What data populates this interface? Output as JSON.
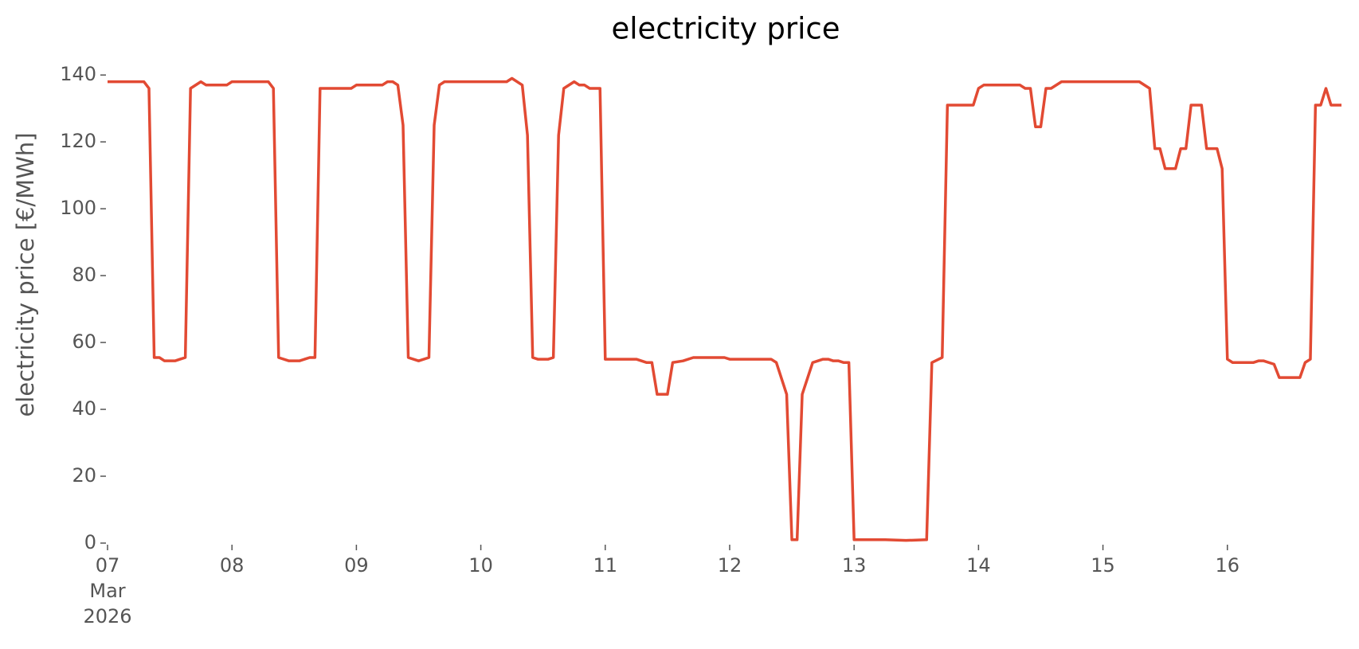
{
  "chart_data": {
    "type": "line",
    "title": "electricity price",
    "ylabel": "electricity price [€/MWh]",
    "x": [
      7,
      7.292,
      7.333,
      7.375,
      7.417,
      7.458,
      7.542,
      7.583,
      7.625,
      7.667,
      7.75,
      7.792,
      7.958,
      8,
      8.292,
      8.333,
      8.375,
      8.458,
      8.542,
      8.625,
      8.667,
      8.708,
      8.958,
      9,
      9.208,
      9.25,
      9.292,
      9.333,
      9.375,
      9.417,
      9.5,
      9.583,
      9.625,
      9.667,
      9.708,
      10.208,
      10.25,
      10.333,
      10.375,
      10.417,
      10.458,
      10.542,
      10.583,
      10.625,
      10.667,
      10.75,
      10.792,
      10.833,
      10.875,
      10.958,
      11,
      11.25,
      11.333,
      11.375,
      11.417,
      11.5,
      11.542,
      11.625,
      11.708,
      11.958,
      12,
      12.333,
      12.375,
      12.458,
      12.5,
      12.542,
      12.583,
      12.667,
      12.75,
      12.792,
      12.833,
      12.875,
      12.917,
      12.958,
      13,
      13.25,
      13.417,
      13.583,
      13.625,
      13.708,
      13.75,
      13.958,
      14,
      14.042,
      14.333,
      14.375,
      14.417,
      14.458,
      14.5,
      14.542,
      14.583,
      14.667,
      15.292,
      15.375,
      15.417,
      15.458,
      15.5,
      15.583,
      15.625,
      15.667,
      15.708,
      15.792,
      15.833,
      15.917,
      15.958,
      16,
      16.042,
      16.208,
      16.25,
      16.292,
      16.375,
      16.417,
      16.583,
      16.625,
      16.667,
      16.708,
      16.75,
      16.792,
      16.833,
      16.917
    ],
    "series": [
      {
        "name": "electricity price",
        "color": "#e24a33",
        "values": [
          138,
          138,
          136,
          55.5,
          55.5,
          54.5,
          54.5,
          55,
          55.5,
          136,
          138,
          137,
          137,
          138,
          138,
          136,
          55.5,
          54.5,
          54.5,
          55.5,
          55.5,
          136,
          136,
          137,
          137,
          138,
          138,
          137,
          125,
          55.5,
          54.5,
          55.5,
          125,
          137,
          138,
          138,
          139,
          137,
          122,
          55.5,
          55,
          55,
          55.5,
          122,
          136,
          138,
          137,
          137,
          136,
          136,
          55,
          55,
          54,
          54,
          44.5,
          44.5,
          54,
          54.5,
          55.5,
          55.5,
          55,
          55,
          54,
          44.5,
          1,
          1,
          44.5,
          54,
          55,
          55,
          54.5,
          54.5,
          54,
          54,
          1,
          1,
          0.8,
          1,
          54,
          55.5,
          131,
          131,
          136,
          137,
          137,
          136,
          136,
          124.5,
          124.5,
          136,
          136,
          138,
          138,
          136,
          118,
          118,
          112,
          112,
          118,
          118,
          131,
          131,
          118,
          118,
          112,
          55,
          54,
          54,
          54.5,
          54.5,
          53.5,
          49.5,
          49.5,
          54,
          55,
          131,
          131,
          136,
          131,
          131
        ]
      }
    ],
    "xlim": [
      7,
      16.917
    ],
    "xticks": [
      {
        "value": 7,
        "label": "07\nMar\n2026"
      },
      {
        "value": 8,
        "label": "08"
      },
      {
        "value": 9,
        "label": "09"
      },
      {
        "value": 10,
        "label": "10"
      },
      {
        "value": 11,
        "label": "11"
      },
      {
        "value": 12,
        "label": "12"
      },
      {
        "value": 13,
        "label": "13"
      },
      {
        "value": 14,
        "label": "14"
      },
      {
        "value": 15,
        "label": "15"
      },
      {
        "value": 16,
        "label": "16"
      }
    ],
    "ylim": [
      0,
      141
    ],
    "yticks": [
      0,
      20,
      40,
      60,
      80,
      100,
      120,
      140
    ],
    "grid": false
  }
}
